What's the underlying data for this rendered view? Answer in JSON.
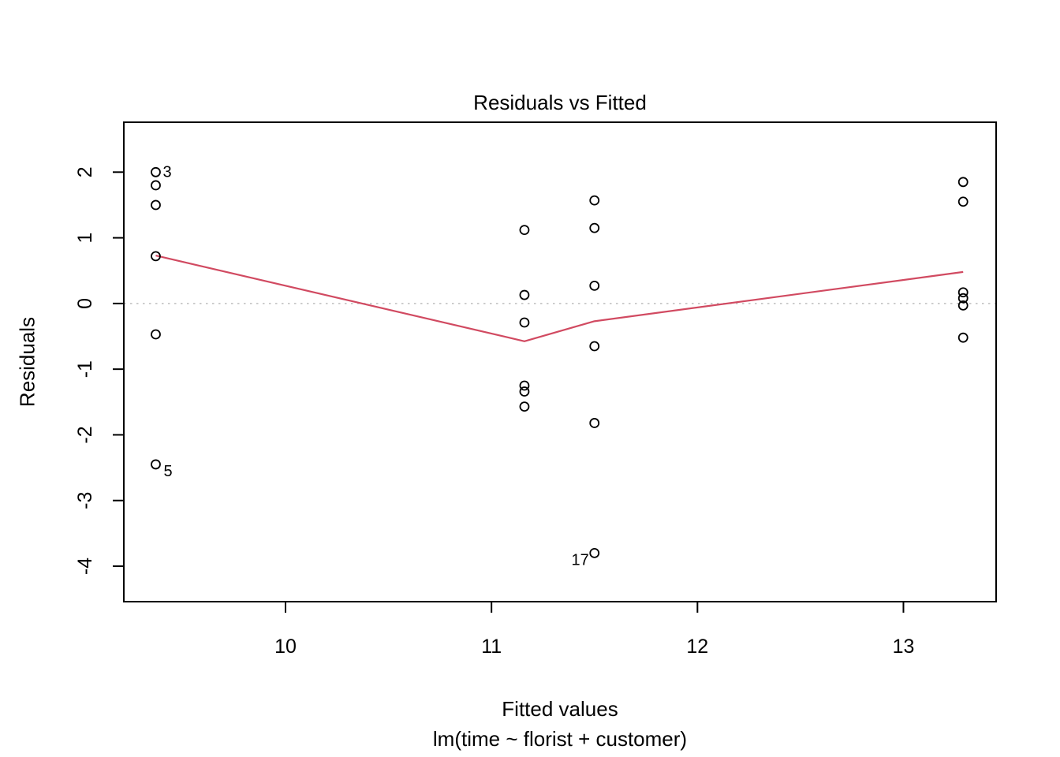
{
  "page": {
    "background": "#ffffff"
  },
  "colors": {
    "axis": "#000000",
    "marker_stroke": "#000000",
    "smoother_line": "#d14a61",
    "zero_line": "#bebebe",
    "text": "#000000"
  },
  "chart_data": {
    "type": "scatter",
    "title": "Residuals vs Fitted",
    "xlabel": "Fitted values",
    "sublabel": "lm(time ~ florist + customer)",
    "ylabel": "Residuals",
    "xlim": [
      9.215,
      13.45
    ],
    "ylim": [
      -4.54,
      2.76
    ],
    "xticks": [
      10,
      11,
      12,
      13
    ],
    "yticks": [
      -4,
      -3,
      -2,
      -1,
      0,
      1,
      2
    ],
    "grid": false,
    "legend": null,
    "zero_line": {
      "y": 0,
      "style": "dotted",
      "color": "#bebebe"
    },
    "series": [
      {
        "name": "residuals",
        "marker": "open-circle",
        "color": "#000000",
        "points": [
          {
            "x": 9.37,
            "y": 2.0,
            "label": "3",
            "label_dx": 9,
            "label_dy": 6,
            "label_anchor": "start"
          },
          {
            "x": 9.37,
            "y": 1.8
          },
          {
            "x": 9.37,
            "y": 1.5
          },
          {
            "x": 9.37,
            "y": 0.72
          },
          {
            "x": 9.37,
            "y": -0.47
          },
          {
            "x": 9.37,
            "y": -2.45,
            "label": "5",
            "label_dx": 10,
            "label_dy": 15,
            "label_anchor": "start"
          },
          {
            "x": 11.16,
            "y": 1.12
          },
          {
            "x": 11.16,
            "y": 0.13
          },
          {
            "x": 11.16,
            "y": -0.29
          },
          {
            "x": 11.16,
            "y": -1.25
          },
          {
            "x": 11.16,
            "y": -1.34
          },
          {
            "x": 11.16,
            "y": -1.57
          },
          {
            "x": 11.5,
            "y": 1.57
          },
          {
            "x": 11.5,
            "y": 1.15
          },
          {
            "x": 11.5,
            "y": 0.27
          },
          {
            "x": 11.5,
            "y": -0.65
          },
          {
            "x": 11.5,
            "y": -1.82
          },
          {
            "x": 11.5,
            "y": -3.8,
            "label": "17",
            "label_dx": -7,
            "label_dy": 15,
            "label_anchor": "end"
          },
          {
            "x": 13.29,
            "y": 1.85
          },
          {
            "x": 13.29,
            "y": 1.55
          },
          {
            "x": 13.29,
            "y": 0.17
          },
          {
            "x": 13.29,
            "y": 0.08
          },
          {
            "x": 13.29,
            "y": -0.03
          },
          {
            "x": 13.29,
            "y": -0.52
          }
        ]
      }
    ],
    "smoother": {
      "name": "lowess-fit-line",
      "color": "#d14a61",
      "vertices": [
        [
          9.37,
          0.73
        ],
        [
          11.16,
          -0.575
        ],
        [
          11.5,
          -0.27
        ],
        [
          13.29,
          0.48
        ]
      ]
    }
  }
}
